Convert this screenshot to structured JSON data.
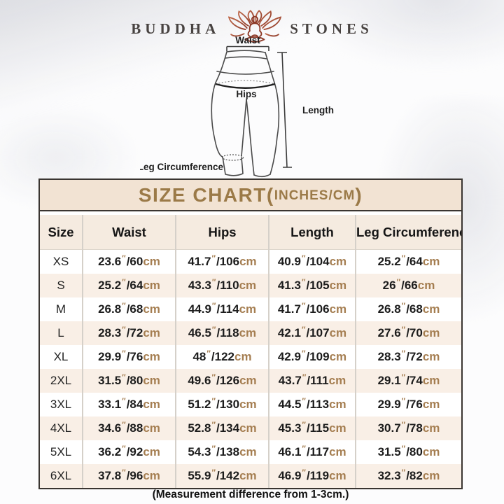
{
  "brand": {
    "name_left": "BUDDHA",
    "name_right": "STONES",
    "icon": "lotus-meditation-icon"
  },
  "diagram": {
    "labels": {
      "waist": "Waist",
      "hips": "Hips",
      "length": "Length",
      "leg": "Leg Circumference"
    }
  },
  "size_chart": {
    "title_main": "SIZE CHART(",
    "title_sub": "INCHES/CM",
    "title_close": ")",
    "columns": [
      "Size",
      "Waist",
      "Hips",
      "Length",
      "Leg Circumference"
    ],
    "unit_inch": "″",
    "unit_cm": "cm",
    "rows": [
      {
        "size": "XS",
        "waist": {
          "in": "23.6",
          "cm": "60"
        },
        "hips": {
          "in": "41.7",
          "cm": "106"
        },
        "length": {
          "in": "40.9",
          "cm": "104"
        },
        "leg": {
          "in": "25.2",
          "cm": "64"
        }
      },
      {
        "size": "S",
        "waist": {
          "in": "25.2",
          "cm": "64"
        },
        "hips": {
          "in": "43.3",
          "cm": "110"
        },
        "length": {
          "in": "41.3",
          "cm": "105"
        },
        "leg": {
          "in": "26",
          "cm": "66"
        }
      },
      {
        "size": "M",
        "waist": {
          "in": "26.8",
          "cm": "68"
        },
        "hips": {
          "in": "44.9",
          "cm": "114"
        },
        "length": {
          "in": "41.7",
          "cm": "106"
        },
        "leg": {
          "in": "26.8",
          "cm": "68"
        }
      },
      {
        "size": "L",
        "waist": {
          "in": "28.3",
          "cm": "72"
        },
        "hips": {
          "in": "46.5",
          "cm": "118"
        },
        "length": {
          "in": "42.1",
          "cm": "107"
        },
        "leg": {
          "in": "27.6",
          "cm": "70"
        }
      },
      {
        "size": "XL",
        "waist": {
          "in": "29.9",
          "cm": "76"
        },
        "hips": {
          "in": "48",
          "cm": "122"
        },
        "length": {
          "in": "42.9",
          "cm": "109"
        },
        "leg": {
          "in": "28.3",
          "cm": "72"
        }
      },
      {
        "size": "2XL",
        "waist": {
          "in": "31.5",
          "cm": "80"
        },
        "hips": {
          "in": "49.6",
          "cm": "126"
        },
        "length": {
          "in": "43.7",
          "cm": "111"
        },
        "leg": {
          "in": "29.1",
          "cm": "74"
        }
      },
      {
        "size": "3XL",
        "waist": {
          "in": "33.1",
          "cm": "84"
        },
        "hips": {
          "in": "51.2",
          "cm": "130"
        },
        "length": {
          "in": "44.5",
          "cm": "113"
        },
        "leg": {
          "in": "29.9",
          "cm": "76"
        }
      },
      {
        "size": "4XL",
        "waist": {
          "in": "34.6",
          "cm": "88"
        },
        "hips": {
          "in": "52.8",
          "cm": "134"
        },
        "length": {
          "in": "45.3",
          "cm": "115"
        },
        "leg": {
          "in": "30.7",
          "cm": "78"
        }
      },
      {
        "size": "5XL",
        "waist": {
          "in": "36.2",
          "cm": "92"
        },
        "hips": {
          "in": "54.3",
          "cm": "138"
        },
        "length": {
          "in": "46.1",
          "cm": "117"
        },
        "leg": {
          "in": "31.5",
          "cm": "80"
        }
      },
      {
        "size": "6XL",
        "waist": {
          "in": "37.8",
          "cm": "96"
        },
        "hips": {
          "in": "55.9",
          "cm": "142"
        },
        "length": {
          "in": "46.9",
          "cm": "119"
        },
        "leg": {
          "in": "32.3",
          "cm": "82"
        }
      }
    ]
  },
  "footer_note": "(Measurement difference from 1-3cm.)",
  "colors": {
    "accent_gold": "#9b7a48",
    "unit_tan": "#a57e51",
    "logo_maroon": "#8d3a28",
    "title_bar_bg": "#f2e3d3",
    "header_bg": "#f5ebe0",
    "row_alt_bg": "#f9efe6",
    "table_border": "#3a3531"
  }
}
